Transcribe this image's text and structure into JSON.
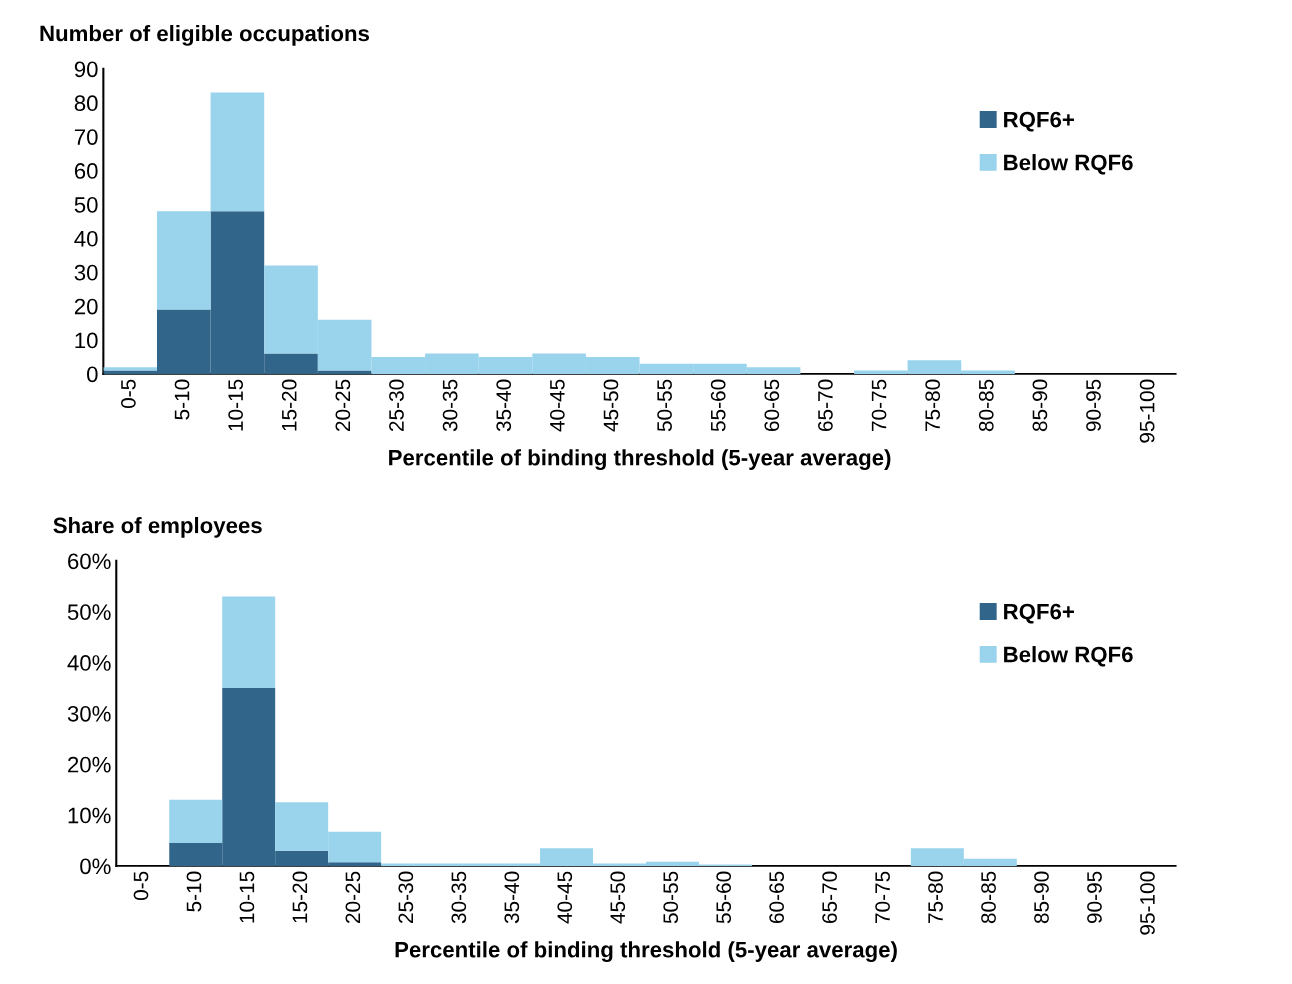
{
  "chart_data": [
    {
      "type": "bar",
      "stacked": true,
      "title": "Number of eligible occupations",
      "xlabel": "Percentile of binding threshold (5-year average)",
      "categories": [
        "0-5",
        "5-10",
        "10-15",
        "15-20",
        "20-25",
        "25-30",
        "30-35",
        "35-40",
        "40-45",
        "45-50",
        "50-55",
        "55-60",
        "60-65",
        "65-70",
        "70-75",
        "75-80",
        "80-85",
        "85-90",
        "90-95",
        "95-100"
      ],
      "series": [
        {
          "name": "RQF6+",
          "color": "#31658a",
          "values": [
            1,
            19,
            48,
            6,
            1,
            0,
            0,
            0,
            0,
            0,
            0,
            0,
            0,
            0,
            0,
            0,
            0,
            0,
            0,
            0
          ]
        },
        {
          "name": "Below RQF6",
          "color": "#99d3ec",
          "values": [
            1,
            29,
            35,
            26,
            15,
            5,
            6,
            5,
            6,
            5,
            3,
            3,
            2,
            0,
            1,
            4,
            1,
            0,
            0,
            0
          ]
        }
      ],
      "ylim": [
        0,
        90
      ],
      "yticks": [
        0,
        10,
        20,
        30,
        40,
        50,
        60,
        70,
        80,
        90
      ],
      "grid": false,
      "legend": "top right"
    },
    {
      "type": "bar",
      "stacked": true,
      "title": "Share of employees",
      "xlabel": "Percentile of binding threshold (5-year average)",
      "categories": [
        "0-5",
        "5-10",
        "10-15",
        "15-20",
        "20-25",
        "25-30",
        "30-35",
        "35-40",
        "40-45",
        "45-50",
        "50-55",
        "55-60",
        "60-65",
        "65-70",
        "70-75",
        "75-80",
        "80-85",
        "85-90",
        "90-95",
        "95-100"
      ],
      "series": [
        {
          "name": "RQF6+",
          "color": "#31658a",
          "values": [
            0,
            4.5,
            35,
            3,
            0.7,
            0,
            0,
            0,
            0,
            0,
            0,
            0,
            0,
            0,
            0,
            0,
            0,
            0,
            0,
            0
          ]
        },
        {
          "name": "Below RQF6",
          "color": "#99d3ec",
          "values": [
            0,
            8.5,
            18,
            9.5,
            6,
            0.5,
            0.5,
            0.5,
            3.5,
            0.5,
            0.8,
            0.3,
            0,
            0,
            0,
            3.5,
            1.4,
            0,
            0,
            0
          ]
        }
      ],
      "ylim": [
        0,
        60
      ],
      "yticks": [
        {
          "value": 0,
          "label": "0%"
        },
        {
          "value": 10,
          "label": "10%"
        },
        {
          "value": 20,
          "label": "20%"
        },
        {
          "value": 30,
          "label": "30%"
        },
        {
          "value": 40,
          "label": "40%"
        },
        {
          "value": 50,
          "label": "50%"
        },
        {
          "value": 60,
          "label": "60%"
        }
      ],
      "grid": false,
      "legend": "top right"
    }
  ]
}
